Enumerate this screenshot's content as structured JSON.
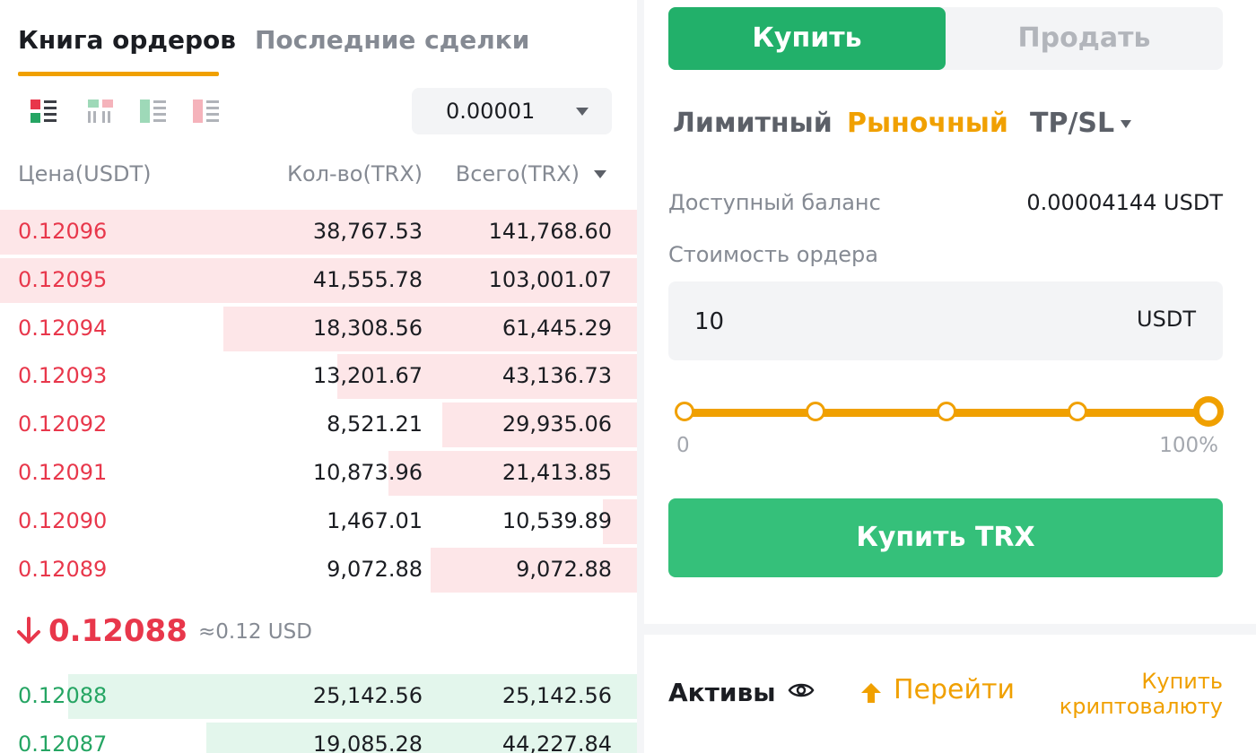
{
  "orderbook": {
    "tabs": [
      {
        "label": "Книга ордеров",
        "active": true
      },
      {
        "label": "Последние сделки",
        "active": false
      }
    ],
    "view_icons": [
      "orderbook-both-icon",
      "orderbook-columns-icon",
      "orderbook-bids-icon",
      "orderbook-asks-icon"
    ],
    "precision": "0.00001",
    "columns": {
      "price": "Цена(USDT)",
      "qty": "Кол-во(TRX)",
      "total": "Всего(TRX)"
    },
    "asks": [
      {
        "price": "0.12096",
        "qty": "38,767.53",
        "total": "141,768.60",
        "depth": 1.0
      },
      {
        "price": "0.12095",
        "qty": "41,555.78",
        "total": "103,001.07",
        "depth": 1.0
      },
      {
        "price": "0.12094",
        "qty": "18,308.56",
        "total": "61,445.29",
        "depth": 0.65
      },
      {
        "price": "0.12093",
        "qty": "13,201.67",
        "total": "43,136.73",
        "depth": 0.47
      },
      {
        "price": "0.12092",
        "qty": "8,521.21",
        "total": "29,935.06",
        "depth": 0.305
      },
      {
        "price": "0.12091",
        "qty": "10,873.96",
        "total": "21,413.85",
        "depth": 0.39
      },
      {
        "price": "0.12090",
        "qty": "1,467.01",
        "total": "10,539.89",
        "depth": 0.054
      },
      {
        "price": "0.12089",
        "qty": "9,072.88",
        "total": "9,072.88",
        "depth": 0.324
      }
    ],
    "last_price": "0.12088",
    "last_price_usd": "≈0.12 USD",
    "bids": [
      {
        "price": "0.12088",
        "qty": "25,142.56",
        "total": "25,142.56",
        "depth": 0.893
      },
      {
        "price": "0.12087",
        "qty": "19,085.28",
        "total": "44,227.84",
        "depth": 0.676
      }
    ]
  },
  "trade": {
    "buy_label": "Купить",
    "sell_label": "Продать",
    "order_types": {
      "limit": "Лимитный",
      "market": "Рыночный",
      "tpsl": "TP/SL"
    },
    "balance_label": "Доступный баланс",
    "balance_value": "0.00004144 USDT",
    "order_value_label": "Стоимость ордера",
    "order_value": "10",
    "order_unit": "USDT",
    "slider_percent": 100,
    "slider_min": "0",
    "slider_max": "100%",
    "submit_label": "Купить TRX"
  },
  "assets": {
    "title": "Активы",
    "goto_label": "Перейти",
    "buy_crypto_label": "Купить криптовалюту"
  },
  "colors": {
    "accent": "#f0a000",
    "buy": "#22b06a",
    "ask": "#e8374b",
    "bid": "#25a563"
  }
}
